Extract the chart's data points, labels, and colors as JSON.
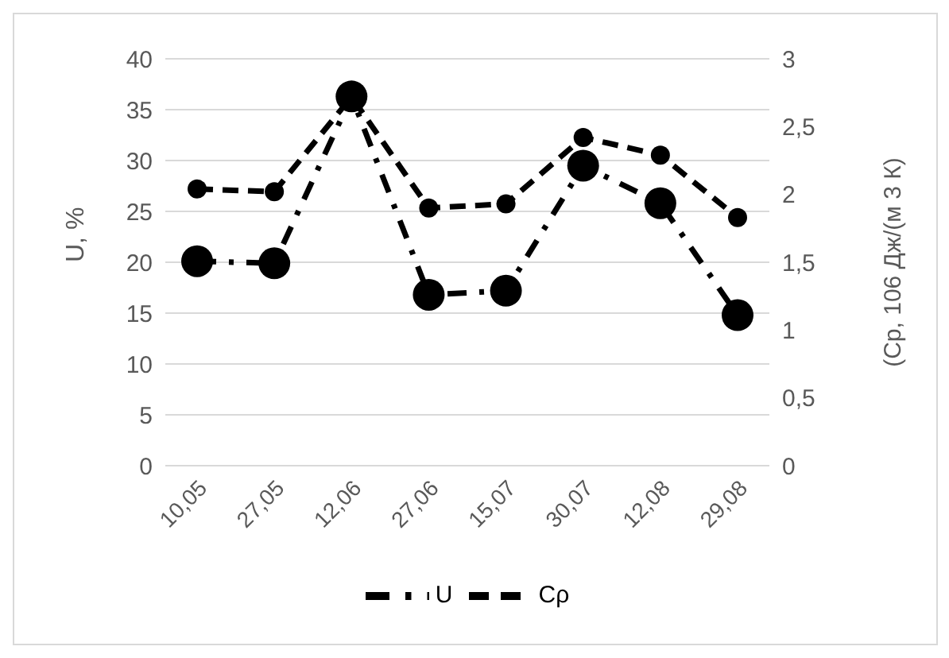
{
  "chart_data": {
    "type": "line",
    "categories": [
      "10,05",
      "27,05",
      "12,06",
      "27,06",
      "15,07",
      "30,07",
      "12,08",
      "29,08"
    ],
    "series": [
      {
        "name": "U",
        "color": "#000000",
        "values": [
          20.1,
          19.9,
          36.3,
          16.8,
          17.2,
          29.5,
          25.8,
          14.8
        ]
      },
      {
        "name": "Cρ",
        "color": "#000000",
        "axis": "y2",
        "values": [
          2.04,
          2.02,
          2.72,
          1.9,
          1.93,
          2.42,
          2.29,
          1.83
        ]
      }
    ],
    "ylabel": "U, %",
    "y2label": "(Ср, 106 Дж/(м 3 К)",
    "ylim": [
      0,
      40
    ],
    "yticks": [
      0,
      5,
      10,
      15,
      20,
      25,
      30,
      35,
      40
    ],
    "y2lim": [
      0,
      3
    ],
    "y2ticks": [
      0,
      {
        "value": 0.5,
        "label": "0,5"
      },
      1,
      {
        "value": 1.5,
        "label": "1,5"
      },
      2,
      {
        "value": 2.5,
        "label": "2,5"
      },
      3
    ],
    "grid": "y",
    "legend": "bottom",
    "marker": "circle",
    "line_style": "dashed"
  }
}
